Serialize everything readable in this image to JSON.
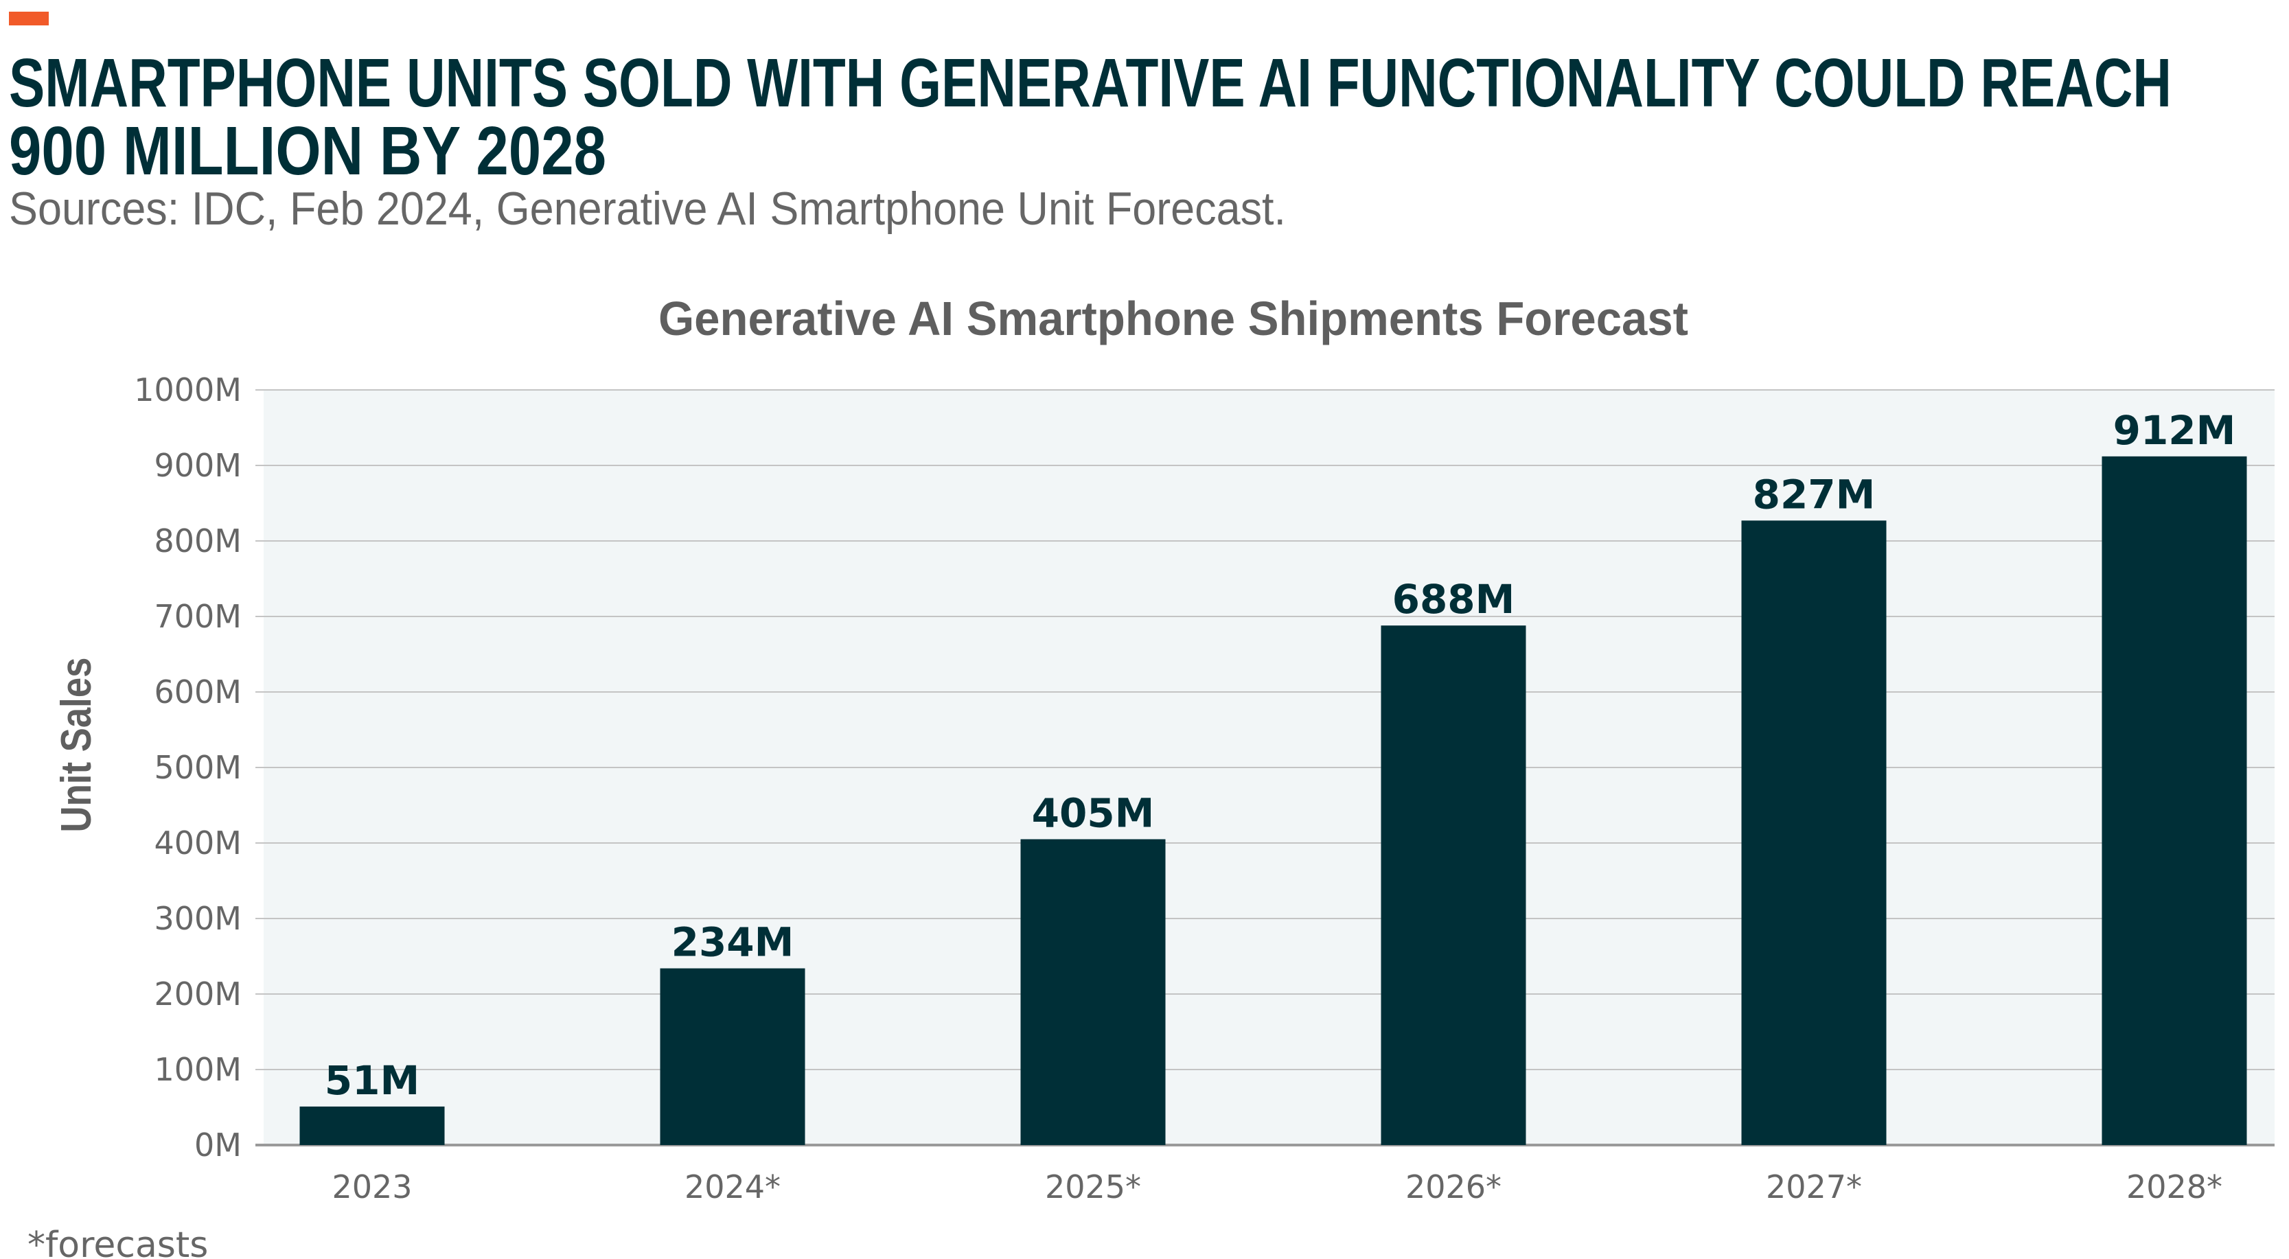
{
  "header": {
    "accent_color": "#f15a29",
    "title_line1": "SMARTPHONE UNITS SOLD WITH GENERATIVE AI FUNCTIONALITY COULD REACH",
    "title_line2": "900 MILLION BY 2028",
    "subtitle": "Sources: IDC, Feb 2024, Generative AI Smartphone Unit Forecast."
  },
  "footnote": "*forecasts",
  "chart_data": {
    "type": "bar",
    "title": "Generative AI Smartphone Shipments Forecast",
    "xlabel": "",
    "ylabel": "Unit Sales",
    "categories": [
      "2023",
      "2024*",
      "2025*",
      "2026*",
      "2027*",
      "2028*"
    ],
    "values": [
      51,
      234,
      405,
      688,
      827,
      912
    ],
    "value_labels": [
      "51M",
      "234M",
      "405M",
      "688M",
      "827M",
      "912M"
    ],
    "unit": "M",
    "ylim": [
      0,
      1000
    ],
    "yticks": [
      0,
      100,
      200,
      300,
      400,
      500,
      600,
      700,
      800,
      900,
      1000
    ],
    "ytick_labels": [
      "0M",
      "100M",
      "200M",
      "300M",
      "400M",
      "500M",
      "600M",
      "700M",
      "800M",
      "900M",
      "1000M"
    ],
    "grid": true,
    "legend": "none",
    "bar_color": "#002f37",
    "plot_background": "#f2f6f7"
  }
}
